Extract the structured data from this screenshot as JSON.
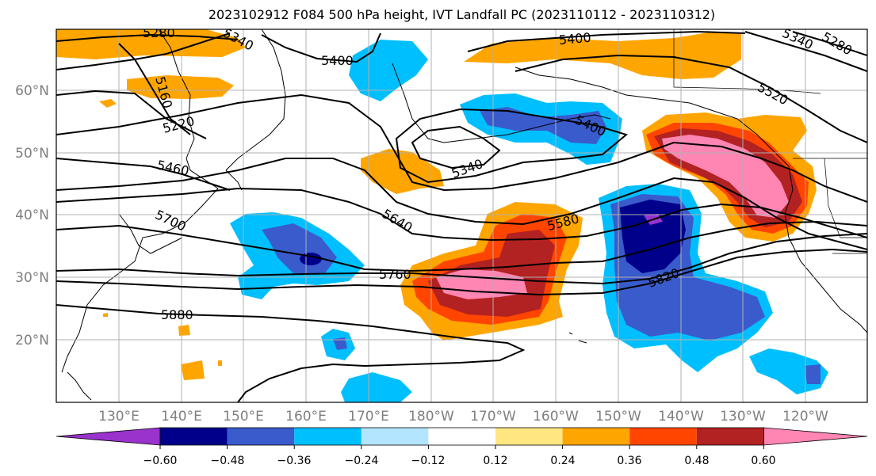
{
  "title": "2023102912 F084 500 hPa height, IVT Landfall PC (2023110112 - 2023110312)",
  "lat_labels": [
    "60°N",
    "50°N",
    "40°N",
    "30°N",
    "20°N"
  ],
  "lon_labels": [
    "130°E",
    "140°E",
    "150°E",
    "160°E",
    "170°E",
    "180°W",
    "170°W",
    "160°W",
    "150°W",
    "140°W",
    "130°W",
    "120°W"
  ],
  "colorbar": {
    "colors": [
      "#9933cc",
      "#00008b",
      "#3a5bcc",
      "#00bfff",
      "#b3e5ff",
      "#ffffff",
      "#ffe680",
      "#ffa500",
      "#ff4500",
      "#b22222",
      "#ff85b3"
    ],
    "tick_labels": [
      "−0.60",
      "−0.48",
      "−0.36",
      "−0.24",
      "−0.12",
      "0.12",
      "0.24",
      "0.36",
      "0.48",
      "0.60"
    ],
    "ticks": [
      -0.6,
      -0.48,
      -0.36,
      -0.24,
      -0.12,
      0.12,
      0.24,
      0.36,
      0.48,
      0.6
    ]
  },
  "contour_labels": [
    "5280",
    "5340",
    "5400",
    "5160",
    "5220",
    "5460",
    "5340",
    "5400",
    "5400",
    "5340",
    "5280",
    "5520",
    "5640",
    "5580",
    "5700",
    "5760",
    "5820",
    "5880"
  ]
}
